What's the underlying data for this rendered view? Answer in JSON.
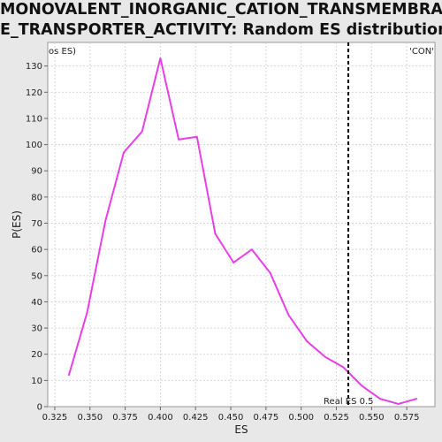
{
  "title_line1": "MONOVALENT_INORGANIC_CATION_TRANSMEMBRAN",
  "title_line2": "E_TRANSPORTER_ACTIVITY: Random ES distribution",
  "legend_left": "os ES)",
  "legend_right": "'CON'",
  "colors": {
    "series": "#e83ee8",
    "legend_left": "#e0303a",
    "legend_right": "#3b3bd6",
    "marker": "#000000"
  },
  "chart_data": {
    "type": "line",
    "xlabel": "ES",
    "ylabel": "P(ES)",
    "xlim": [
      0.32,
      0.595
    ],
    "ylim": [
      0,
      139
    ],
    "xticks": [
      "0.325",
      "0.350",
      "0.375",
      "0.400",
      "0.425",
      "0.450",
      "0.475",
      "0.500",
      "0.525",
      "0.550",
      "0.575"
    ],
    "yticks": [
      "0",
      "10",
      "20",
      "30",
      "40",
      "50",
      "60",
      "70",
      "80",
      "90",
      "100",
      "110",
      "120",
      "130"
    ],
    "grid": true,
    "series": [
      {
        "x": [
          0.335,
          0.348,
          0.361,
          0.374,
          0.387,
          0.4,
          0.413,
          0.426,
          0.439,
          0.452,
          0.465,
          0.478,
          0.491,
          0.504,
          0.517,
          0.53,
          0.543,
          0.556,
          0.569,
          0.582
        ],
        "y": [
          12,
          36,
          71,
          97,
          105,
          133,
          102,
          103,
          66,
          55,
          60,
          51,
          35,
          25,
          19,
          15,
          8,
          3,
          1,
          3
        ]
      }
    ],
    "marker": {
      "x": 0.5335,
      "label": "Real ES 0.5"
    }
  }
}
